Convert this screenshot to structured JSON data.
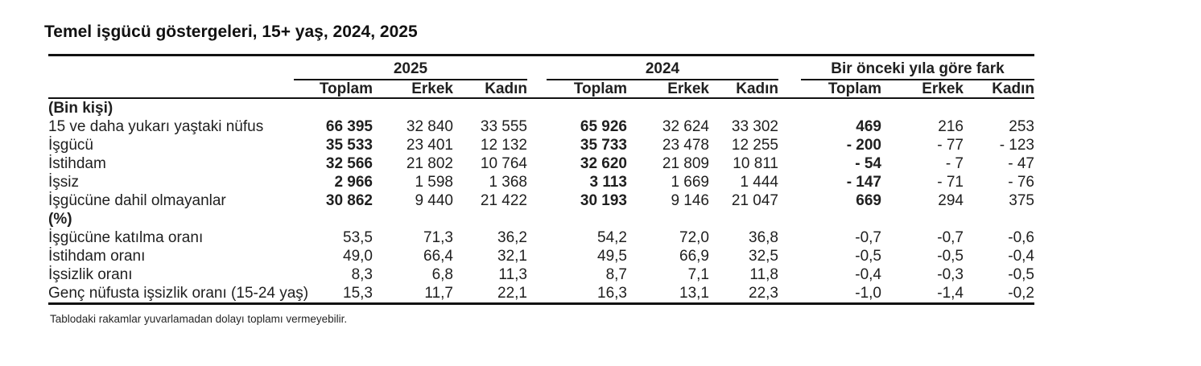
{
  "page": {
    "title": "Temel işgücü göstergeleri, 15+ yaş, 2024, 2025",
    "footnote": "Tablodaki rakamlar yuvarlamadan dolayı toplamı vermeyebilir.",
    "text_color": "#1f1f1f",
    "rule_color": "#111111",
    "background_color": "#ffffff"
  },
  "table": {
    "column_groups": [
      {
        "label": "2025",
        "columns": [
          "Toplam",
          "Erkek",
          "Kadın"
        ]
      },
      {
        "label": "2024",
        "columns": [
          "Toplam",
          "Erkek",
          "Kadın"
        ]
      },
      {
        "label": "Bir önceki yıla göre fark",
        "columns": [
          "Toplam",
          "Erkek",
          "Kadın"
        ]
      }
    ],
    "sections": [
      {
        "header": "(Bin kişi)",
        "bold_value_indexes": [
          0,
          3,
          6
        ],
        "rows": [
          {
            "label": "15 ve daha yukarı yaştaki nüfus",
            "values": [
              "66 395",
              "32 840",
              "33 555",
              "65 926",
              "32 624",
              "33 302",
              "469",
              "216",
              "253"
            ]
          },
          {
            "label": "İşgücü",
            "values": [
              "35 533",
              "23 401",
              "12 132",
              "35 733",
              "23 478",
              "12 255",
              "- 200",
              "- 77",
              "- 123"
            ]
          },
          {
            "label": "İstihdam",
            "values": [
              "32 566",
              "21 802",
              "10 764",
              "32 620",
              "21 809",
              "10 811",
              "- 54",
              "- 7",
              "- 47"
            ]
          },
          {
            "label": "İşsiz",
            "values": [
              "2 966",
              "1 598",
              "1 368",
              "3 113",
              "1 669",
              "1 444",
              "- 147",
              "- 71",
              "- 76"
            ]
          },
          {
            "label": "İşgücüne dahil olmayanlar",
            "values": [
              "30 862",
              "9 440",
              "21 422",
              "30 193",
              "9 146",
              "21 047",
              "669",
              "294",
              "375"
            ]
          }
        ]
      },
      {
        "header": "(%)",
        "bold_value_indexes": [],
        "rows": [
          {
            "label": "İşgücüne katılma oranı",
            "values": [
              "53,5",
              "71,3",
              "36,2",
              "54,2",
              "72,0",
              "36,8",
              "-0,7",
              "-0,7",
              "-0,6"
            ]
          },
          {
            "label": "İstihdam oranı",
            "values": [
              "49,0",
              "66,4",
              "32,1",
              "49,5",
              "66,9",
              "32,5",
              "-0,5",
              "-0,5",
              "-0,4"
            ]
          },
          {
            "label": "İşsizlik oranı",
            "values": [
              "8,3",
              "6,8",
              "11,3",
              "8,7",
              "7,1",
              "11,8",
              "-0,4",
              "-0,3",
              "-0,5"
            ]
          },
          {
            "label": "Genç nüfusta işsizlik oranı (15-24 yaş)",
            "values": [
              "15,3",
              "11,7",
              "22,1",
              "16,3",
              "13,1",
              "22,3",
              "-1,0",
              "-1,4",
              "-0,2"
            ]
          }
        ]
      }
    ]
  }
}
